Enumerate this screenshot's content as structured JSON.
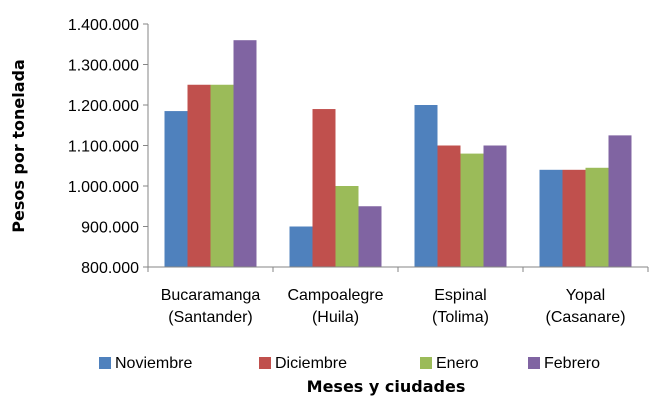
{
  "chart_data": {
    "type": "bar",
    "categories": [
      [
        "Bucaramanga",
        "(Santander)"
      ],
      [
        "Campoalegre",
        "(Huila)"
      ],
      [
        "Espinal",
        "(Tolima)"
      ],
      [
        "Yopal",
        "(Casanare)"
      ]
    ],
    "series": [
      {
        "name": "Noviembre",
        "color": "#4F81BD",
        "values": [
          1185000,
          900000,
          1200000,
          1040000
        ]
      },
      {
        "name": "Diciembre",
        "color": "#C0504D",
        "values": [
          1250000,
          1190000,
          1100000,
          1040000
        ]
      },
      {
        "name": "Enero",
        "color": "#9BBB59",
        "values": [
          1250000,
          1000000,
          1080000,
          1045000
        ]
      },
      {
        "name": "Febrero",
        "color": "#8064A2",
        "values": [
          1360000,
          950000,
          1100000,
          1125000
        ]
      }
    ],
    "xlabel": "Meses y ciudades",
    "ylabel": "Pesos por tonelada",
    "ylim": [
      800000,
      1400000
    ],
    "yticks": [
      800000,
      900000,
      1000000,
      1100000,
      1200000,
      1300000,
      1400000
    ],
    "ytick_labels": [
      "800.000",
      "900.000",
      "1.000.000",
      "1.100.000",
      "1.200.000",
      "1.300.000",
      "1.400.000"
    ],
    "legend_position": "bottom",
    "grid": false
  }
}
